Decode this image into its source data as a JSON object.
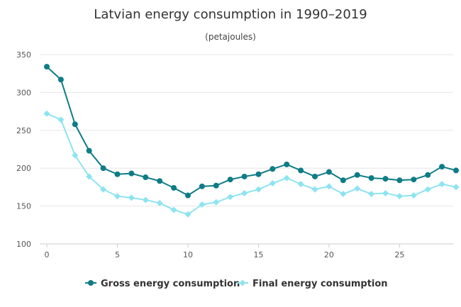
{
  "chart_data": {
    "type": "line",
    "title": "Latvian energy consumption in 1990–2019",
    "subtitle": "(petajoules)",
    "xlabel": "",
    "ylabel": "",
    "xlim": [
      0,
      29
    ],
    "ylim": [
      100,
      350
    ],
    "x_ticks": [
      0,
      5,
      10,
      15,
      20,
      25
    ],
    "y_ticks": [
      100,
      150,
      200,
      250,
      300,
      350
    ],
    "grid": "horizontal",
    "legend_position": "bottom-center",
    "x": [
      0,
      1,
      2,
      3,
      4,
      5,
      6,
      7,
      8,
      9,
      10,
      11,
      12,
      13,
      14,
      15,
      16,
      17,
      18,
      19,
      20,
      21,
      22,
      23,
      24,
      25,
      26,
      27,
      28,
      29
    ],
    "series": [
      {
        "name": "Gross energy consumption",
        "color": "#0e7c86",
        "marker": "circle",
        "values": [
          334,
          317,
          258,
          223,
          200,
          192,
          193,
          188,
          183,
          174,
          164,
          176,
          177,
          185,
          189,
          192,
          199,
          205,
          197,
          189,
          195,
          184,
          191,
          187,
          186,
          184,
          185,
          191,
          202,
          197
        ]
      },
      {
        "name": "Final energy consumption",
        "color": "#8de4f0",
        "marker": "diamond",
        "values": [
          272,
          264,
          217,
          189,
          172,
          163,
          161,
          158,
          154,
          145,
          139,
          152,
          155,
          162,
          167,
          172,
          180,
          187,
          179,
          172,
          176,
          166,
          173,
          166,
          167,
          163,
          164,
          172,
          179,
          175
        ]
      }
    ]
  }
}
